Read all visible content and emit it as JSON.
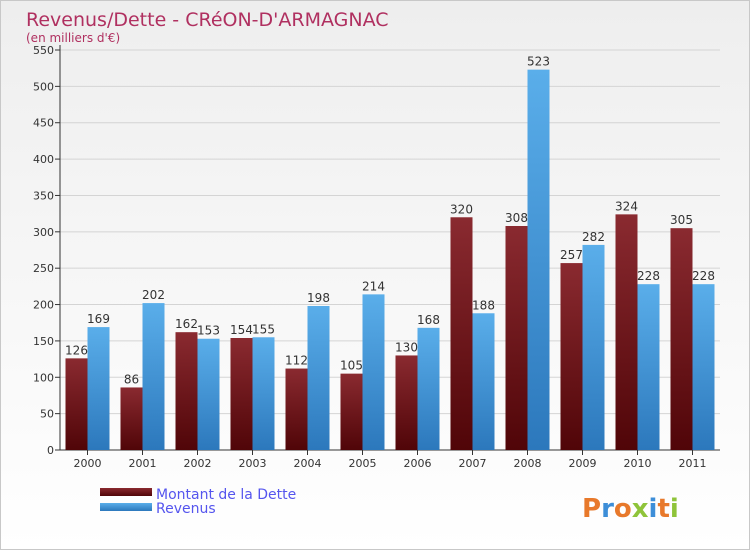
{
  "chart_data": {
    "type": "bar",
    "title": "Revenus/Dette - CRéON-D'ARMAGNAC",
    "subtitle": "(en milliers d'€)",
    "categories": [
      "2000",
      "2001",
      "2002",
      "2003",
      "2004",
      "2005",
      "2006",
      "2007",
      "2008",
      "2009",
      "2010",
      "2011"
    ],
    "series": [
      {
        "name": "Montant de la Dette",
        "values": [
          126,
          86,
          162,
          154,
          112,
          105,
          130,
          320,
          308,
          257,
          324,
          305
        ]
      },
      {
        "name": "Revenus",
        "values": [
          169,
          202,
          153,
          155,
          198,
          214,
          168,
          188,
          523,
          282,
          228,
          228
        ]
      }
    ],
    "ylim": [
      0,
      550
    ],
    "yticks": [
      0,
      50,
      100,
      150,
      200,
      250,
      300,
      350,
      400,
      450,
      500,
      550
    ],
    "grid": true,
    "legend_position": "bottom-left",
    "colors": {
      "title": "#b03060",
      "dette": "#7a1a1f",
      "dette_dark": "#4f0508",
      "revenus": "#55a6e6",
      "revenus_dark": "#2d7cc0",
      "legend_text": "#5555ee"
    }
  },
  "logo": {
    "text": "Proxiti"
  }
}
